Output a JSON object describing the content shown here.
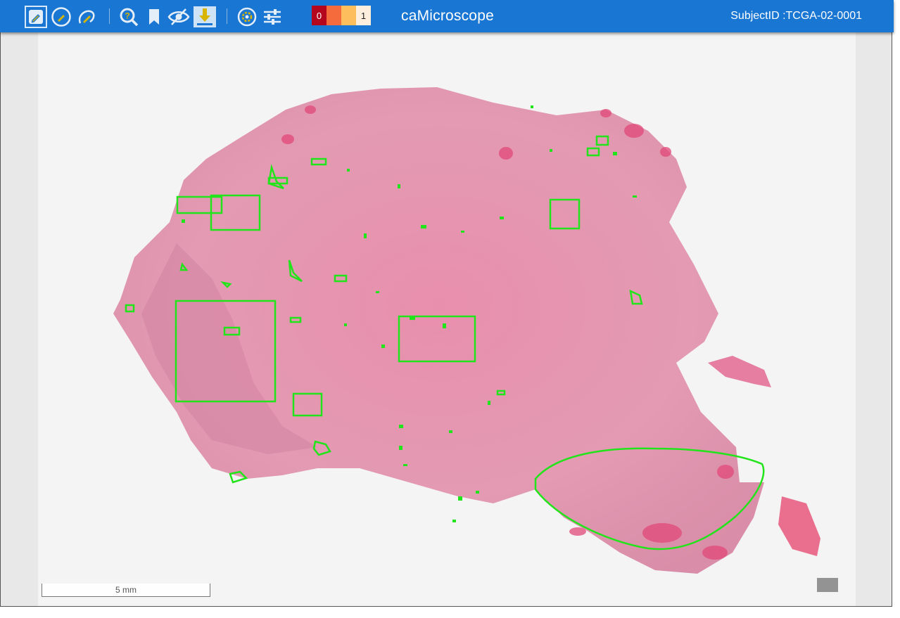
{
  "app": {
    "title": "caMicroscope",
    "subject_id": "SubjectID :TCGA-02-0001"
  },
  "toolbar": {
    "tools": [
      {
        "name": "draw-pencil",
        "icon": "pencil-icon",
        "active": true
      },
      {
        "name": "draw-circle",
        "icon": "circle-pencil-icon"
      },
      {
        "name": "magic-wand",
        "icon": "wand-icon"
      },
      {
        "name": "help-zoom",
        "icon": "magnify-question-icon"
      },
      {
        "name": "bookmark",
        "icon": "bookmark-icon"
      },
      {
        "name": "visibility",
        "icon": "eye-off-icon"
      },
      {
        "name": "download",
        "icon": "download-icon",
        "highlighted": true
      },
      {
        "name": "heatmap",
        "icon": "heatmap-settings-icon"
      },
      {
        "name": "adjust",
        "icon": "tune-icon"
      }
    ],
    "heat_legend": {
      "min_label": "0",
      "max_label": "1",
      "colors": [
        "#b4061c",
        "#f66b3b",
        "#fdbf5e",
        "#fdeedd"
      ]
    }
  },
  "viewer": {
    "scale_label": "5 mm",
    "annotation_color": "#22e41a",
    "tissue_color": "#e291aa"
  }
}
